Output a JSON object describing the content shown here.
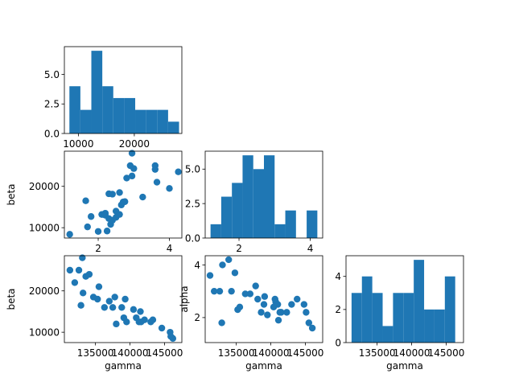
{
  "chart_data": [
    {
      "id": "hist-beta",
      "type": "bar",
      "title": "",
      "xlabel": "",
      "ylabel": "",
      "xlim": [
        7500,
        28500
      ],
      "ylim": [
        0,
        7.35
      ],
      "xticks": [
        {
          "v": 10000,
          "label": "10000"
        },
        {
          "v": 20000,
          "label": "20000"
        }
      ],
      "yticks": [
        {
          "v": 0,
          "label": "0.0"
        },
        {
          "v": 2.5,
          "label": "2.5"
        },
        {
          "v": 5,
          "label": "5.0"
        }
      ],
      "bin_edges": [
        8400,
        10360,
        12320,
        14280,
        16240,
        18200,
        20160,
        22120,
        24080,
        26040,
        28000
      ],
      "values": [
        4,
        2,
        7,
        4,
        3,
        3,
        2,
        2,
        2,
        1
      ],
      "color": "#1f77b4"
    },
    {
      "id": "scatter-alpha-beta",
      "type": "scatter",
      "title": "",
      "xlabel": "",
      "ylabel": "beta",
      "xlim": [
        1.05,
        4.35
      ],
      "ylim": [
        7500,
        28500
      ],
      "xticks": [
        {
          "v": 2,
          "label": "2"
        },
        {
          "v": 4,
          "label": "4"
        }
      ],
      "yticks": [
        {
          "v": 10000,
          "label": "10000"
        },
        {
          "v": 20000,
          "label": "20000"
        }
      ],
      "x": [
        1.2,
        1.7,
        1.8,
        1.65,
        2.0,
        2.1,
        2.2,
        2.25,
        2.3,
        2.35,
        2.3,
        2.4,
        2.5,
        2.6,
        2.65,
        2.7,
        2.75,
        2.4,
        2.5,
        2.6,
        2.8,
        2.9,
        2.95,
        3.0,
        2.95,
        3.25,
        3.6,
        3.65,
        3.6,
        4.0,
        4.25,
        2.2
      ],
      "y": [
        8400,
        10200,
        12700,
        16500,
        9100,
        13200,
        13500,
        9200,
        12200,
        10800,
        18200,
        11800,
        14000,
        13200,
        15500,
        16200,
        16300,
        18100,
        12500,
        18500,
        22000,
        25000,
        28000,
        24300,
        22500,
        17400,
        25000,
        21000,
        24100,
        19500,
        23500,
        13000
      ],
      "color": "#1f77b4"
    },
    {
      "id": "hist-alpha",
      "type": "bar",
      "title": "",
      "xlabel": "",
      "ylabel": "",
      "xlim": [
        1.05,
        4.35
      ],
      "ylim": [
        0,
        6.3
      ],
      "xticks": [
        {
          "v": 2,
          "label": "2"
        },
        {
          "v": 4,
          "label": "4"
        }
      ],
      "yticks": [
        {
          "v": 0,
          "label": "0.0"
        },
        {
          "v": 2.5,
          "label": "2.5"
        },
        {
          "v": 5,
          "label": "5.0"
        }
      ],
      "bin_edges": [
        1.2,
        1.5,
        1.8,
        2.1,
        2.4,
        2.7,
        3.0,
        3.3,
        3.6,
        3.9,
        4.2
      ],
      "values": [
        1,
        3,
        4,
        6,
        5,
        6,
        1,
        2,
        0,
        2
      ],
      "color": "#1f77b4"
    },
    {
      "id": "scatter-gamma-beta",
      "type": "scatter",
      "title": "",
      "xlabel": "gamma",
      "ylabel": "beta",
      "xlim": [
        130500,
        147500
      ],
      "ylim": [
        7500,
        28500
      ],
      "xticks": [
        {
          "v": 135000,
          "label": "135000"
        },
        {
          "v": 140000,
          "label": "140000"
        },
        {
          "v": 145000,
          "label": "145000"
        }
      ],
      "yticks": [
        {
          "v": 10000,
          "label": "10000"
        },
        {
          "v": 20000,
          "label": "20000"
        }
      ],
      "x": [
        131300,
        132000,
        132600,
        132900,
        133100,
        133200,
        133600,
        134100,
        134700,
        135500,
        135300,
        136300,
        137000,
        137500,
        137800,
        138000,
        138800,
        139100,
        139300,
        139500,
        140500,
        140900,
        141300,
        141500,
        141600,
        142100,
        143000,
        143300,
        144600,
        145800,
        145900,
        146200
      ],
      "y": [
        25000,
        22000,
        25000,
        16500,
        28000,
        19500,
        23500,
        24000,
        18500,
        21000,
        18000,
        16000,
        17500,
        16000,
        18500,
        12000,
        16000,
        13500,
        18000,
        12500,
        15500,
        13500,
        12500,
        15000,
        12500,
        13000,
        12500,
        13000,
        11000,
        10000,
        9000,
        8500
      ],
      "color": "#1f77b4"
    },
    {
      "id": "scatter-gamma-alpha",
      "type": "scatter",
      "title": "",
      "xlabel": "gamma",
      "ylabel": "alpha",
      "xlim": [
        130500,
        147500
      ],
      "ylim": [
        1.05,
        4.35
      ],
      "xticks": [
        {
          "v": 135000,
          "label": "135000"
        },
        {
          "v": 140000,
          "label": "140000"
        },
        {
          "v": 145000,
          "label": "145000"
        }
      ],
      "yticks": [
        {
          "v": 2,
          "label": "2"
        },
        {
          "v": 4,
          "label": "4"
        }
      ],
      "x": [
        131200,
        131800,
        132600,
        132900,
        133000,
        133900,
        134300,
        134800,
        135200,
        135500,
        136300,
        137000,
        137800,
        138100,
        138600,
        139000,
        139100,
        139500,
        140400,
        140600,
        140700,
        141000,
        141100,
        141300,
        141500,
        142300,
        143000,
        143800,
        144800,
        145100,
        145500,
        146000
      ],
      "y": [
        3.6,
        3.0,
        3.0,
        1.8,
        4.0,
        4.2,
        3.0,
        3.7,
        2.3,
        2.4,
        2.9,
        2.9,
        3.2,
        2.7,
        2.2,
        2.5,
        2.8,
        2.1,
        2.4,
        2.7,
        2.6,
        2.5,
        1.9,
        2.2,
        2.2,
        2.2,
        2.5,
        2.7,
        2.5,
        2.2,
        1.8,
        1.6
      ],
      "color": "#1f77b4"
    },
    {
      "id": "hist-gamma",
      "type": "bar",
      "title": "",
      "xlabel": "gamma",
      "ylabel": "",
      "xlim": [
        130500,
        147500
      ],
      "ylim": [
        0,
        5.25
      ],
      "xticks": [
        {
          "v": 135000,
          "label": "135000"
        },
        {
          "v": 140000,
          "label": "140000"
        },
        {
          "v": 145000,
          "label": "145000"
        }
      ],
      "yticks": [
        {
          "v": 0,
          "label": "0"
        },
        {
          "v": 2,
          "label": "2"
        },
        {
          "v": 4,
          "label": "4"
        }
      ],
      "bin_edges": [
        131300,
        132800,
        134300,
        135800,
        137300,
        138800,
        140300,
        141800,
        143300,
        144800,
        146300
      ],
      "values": [
        3,
        4,
        3,
        1,
        3,
        3,
        5,
        2,
        2,
        4
      ],
      "color": "#1f77b4"
    }
  ]
}
